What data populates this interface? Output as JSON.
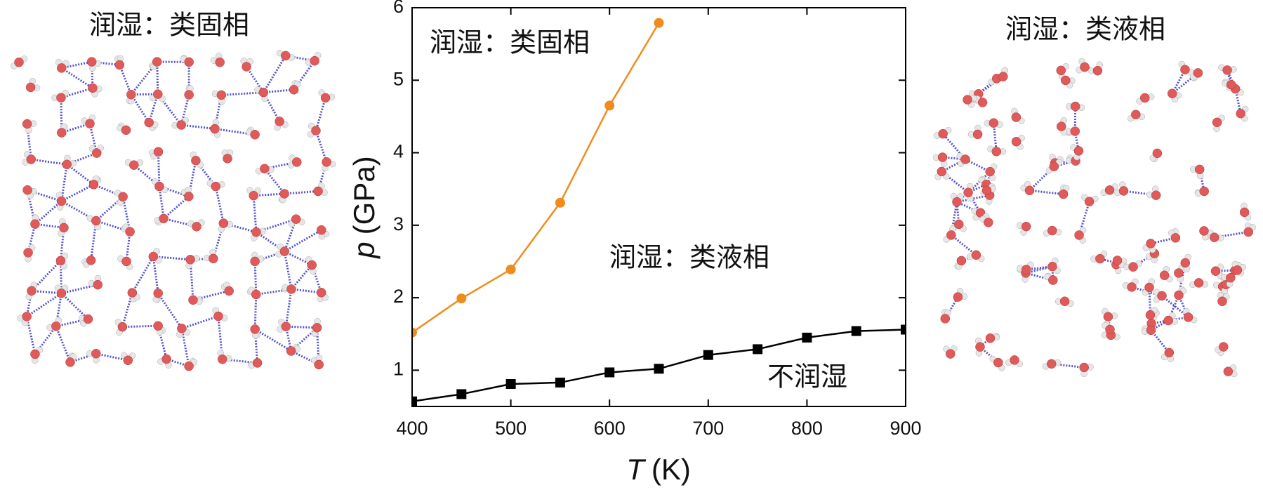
{
  "chart_data": {
    "type": "line",
    "left_panel_title": "润湿：类固相",
    "right_panel_title": "润湿：类液相",
    "x_label_symbol": "T",
    "x_label_unit": "(K)",
    "y_label_symbol": "p",
    "y_label_unit": "(GPa)",
    "annotations": [
      "润湿：类固相",
      "润湿：类液相",
      "不润湿"
    ],
    "xlim": [
      400,
      900
    ],
    "xticks": [
      400,
      500,
      600,
      700,
      800,
      900
    ],
    "ylim": [
      0.5,
      6
    ],
    "yticks": [
      1,
      2,
      3,
      4,
      5,
      6
    ],
    "series": [
      {
        "color": "#f08c1e",
        "marker": "circle",
        "x": [
          400,
          450,
          500,
          550,
          600,
          650
        ],
        "values": [
          1.52,
          1.99,
          2.39,
          3.31,
          4.65,
          5.79
        ]
      },
      {
        "color": "#000000",
        "marker": "square",
        "x": [
          400,
          450,
          500,
          550,
          600,
          650,
          700,
          750,
          800,
          850,
          900
        ],
        "values": [
          0.57,
          0.67,
          0.81,
          0.83,
          0.97,
          1.02,
          1.21,
          1.29,
          1.45,
          1.54,
          1.56
        ]
      }
    ]
  }
}
